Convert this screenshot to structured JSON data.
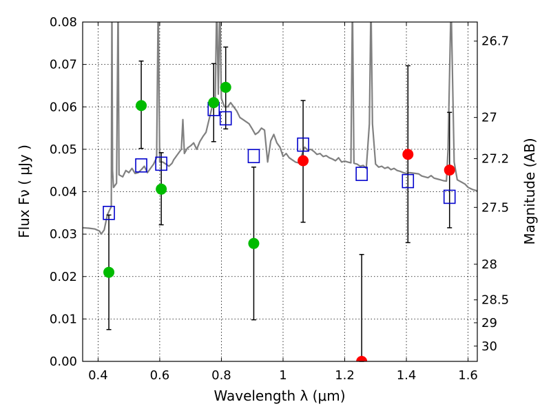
{
  "chart_data": {
    "type": "scatter",
    "xlabel": "Wavelength  λ (μm)",
    "ylabel": "Flux  Fν  ( μJy )",
    "ylabel_right": "Magnitude (AB)",
    "xlim": [
      0.35,
      1.63
    ],
    "ylim": [
      0,
      0.08
    ],
    "grid": true,
    "x_ticks": [
      0.4,
      0.6,
      0.8,
      1,
      1.2,
      1.4,
      1.6
    ],
    "x_tick_labels": [
      "0.4",
      "0.6",
      "0.8",
      "1",
      "1.2",
      "1.4",
      "1.6"
    ],
    "y_ticks": [
      0,
      0.01,
      0.02,
      0.03,
      0.04,
      0.05,
      0.06,
      0.07,
      0.08
    ],
    "y_tick_labels": [
      "0.00",
      "0.01",
      "0.02",
      "0.03",
      "0.04",
      "0.05",
      "0.06",
      "0.07",
      "0.08"
    ],
    "right_ticks": [
      {
        "label": "26.7",
        "flux": 0.0755
      },
      {
        "label": "27",
        "flux": 0.0575
      },
      {
        "label": "27.2",
        "flux": 0.0478
      },
      {
        "label": "27.5",
        "flux": 0.0363
      },
      {
        "label": "28",
        "flux": 0.0229
      },
      {
        "label": "28.5",
        "flux": 0.0145
      },
      {
        "label": "29",
        "flux": 0.0091
      },
      {
        "label": "30",
        "flux": 0.0036
      }
    ],
    "colors": {
      "detection": "#00bb00",
      "upper_limit": "#ff0000",
      "model_band": "#0000cc",
      "sed": "#808080",
      "errorbar": "#000000"
    },
    "observed_detections": [
      {
        "x": 0.435,
        "y": 0.021,
        "err_low": 0.0075,
        "err_high": 0.0345
      },
      {
        "x": 0.54,
        "y": 0.0603,
        "err_low": 0.0502,
        "err_high": 0.0708
      },
      {
        "x": 0.605,
        "y": 0.0406,
        "err_low": 0.0322,
        "err_high": 0.0492
      },
      {
        "x": 0.775,
        "y": 0.061,
        "err_low": 0.0518,
        "err_high": 0.0702
      },
      {
        "x": 0.814,
        "y": 0.0646,
        "err_low": 0.0548,
        "err_high": 0.0741
      },
      {
        "x": 0.905,
        "y": 0.0278,
        "err_low": 0.0098,
        "err_high": 0.0458
      }
    ],
    "observed_upper_limits": [
      {
        "x": 1.065,
        "y": 0.0473,
        "err_low": 0.0328,
        "err_high": 0.0615
      },
      {
        "x": 1.255,
        "y": 0.0,
        "err_low": 0.0,
        "err_high": 0.0252
      },
      {
        "x": 1.405,
        "y": 0.0488,
        "err_low": 0.028,
        "err_high": 0.0697
      },
      {
        "x": 1.54,
        "y": 0.0451,
        "err_low": 0.0315,
        "err_high": 0.0587
      }
    ],
    "model_bands": [
      {
        "x": 0.435,
        "y": 0.035
      },
      {
        "x": 0.54,
        "y": 0.0462
      },
      {
        "x": 0.605,
        "y": 0.0466
      },
      {
        "x": 0.775,
        "y": 0.0595
      },
      {
        "x": 0.814,
        "y": 0.0573
      },
      {
        "x": 0.905,
        "y": 0.0484
      },
      {
        "x": 1.065,
        "y": 0.0511
      },
      {
        "x": 1.255,
        "y": 0.0442
      },
      {
        "x": 1.405,
        "y": 0.0425
      },
      {
        "x": 1.54,
        "y": 0.0388
      }
    ],
    "sed_model": [
      [
        0.35,
        0.0315
      ],
      [
        0.37,
        0.0314
      ],
      [
        0.39,
        0.0312
      ],
      [
        0.405,
        0.0307
      ],
      [
        0.41,
        0.03
      ],
      [
        0.42,
        0.031
      ],
      [
        0.43,
        0.0345
      ],
      [
        0.437,
        0.0356
      ],
      [
        0.443,
        0.0365
      ],
      [
        0.445,
        0.085
      ],
      [
        0.447,
        0.045
      ],
      [
        0.45,
        0.041
      ],
      [
        0.46,
        0.042
      ],
      [
        0.465,
        0.085
      ],
      [
        0.468,
        0.044
      ],
      [
        0.48,
        0.0435
      ],
      [
        0.49,
        0.045
      ],
      [
        0.5,
        0.0445
      ],
      [
        0.51,
        0.0455
      ],
      [
        0.52,
        0.0443
      ],
      [
        0.53,
        0.0445
      ],
      [
        0.54,
        0.0452
      ],
      [
        0.55,
        0.046
      ],
      [
        0.56,
        0.0445
      ],
      [
        0.57,
        0.0455
      ],
      [
        0.58,
        0.0465
      ],
      [
        0.59,
        0.048
      ],
      [
        0.595,
        0.085
      ],
      [
        0.6,
        0.047
      ],
      [
        0.61,
        0.047
      ],
      [
        0.62,
        0.0465
      ],
      [
        0.63,
        0.046
      ],
      [
        0.64,
        0.0467
      ],
      [
        0.645,
        0.0475
      ],
      [
        0.65,
        0.048
      ],
      [
        0.66,
        0.049
      ],
      [
        0.665,
        0.0495
      ],
      [
        0.67,
        0.05
      ],
      [
        0.675,
        0.057
      ],
      [
        0.68,
        0.049
      ],
      [
        0.69,
        0.0503
      ],
      [
        0.7,
        0.0508
      ],
      [
        0.71,
        0.0515
      ],
      [
        0.72,
        0.05
      ],
      [
        0.73,
        0.0518
      ],
      [
        0.74,
        0.053
      ],
      [
        0.75,
        0.054
      ],
      [
        0.76,
        0.057
      ],
      [
        0.77,
        0.06
      ],
      [
        0.78,
        0.062
      ],
      [
        0.785,
        0.085
      ],
      [
        0.79,
        0.063
      ],
      [
        0.795,
        0.085
      ],
      [
        0.8,
        0.062
      ],
      [
        0.81,
        0.06
      ],
      [
        0.82,
        0.06
      ],
      [
        0.83,
        0.061
      ],
      [
        0.84,
        0.06
      ],
      [
        0.85,
        0.059
      ],
      [
        0.86,
        0.0575
      ],
      [
        0.87,
        0.057
      ],
      [
        0.88,
        0.0565
      ],
      [
        0.89,
        0.056
      ],
      [
        0.9,
        0.0548
      ],
      [
        0.91,
        0.0535
      ],
      [
        0.92,
        0.054
      ],
      [
        0.93,
        0.055
      ],
      [
        0.94,
        0.0545
      ],
      [
        0.95,
        0.047
      ],
      [
        0.96,
        0.052
      ],
      [
        0.97,
        0.0535
      ],
      [
        0.98,
        0.0515
      ],
      [
        0.99,
        0.0505
      ],
      [
        1.0,
        0.0483
      ],
      [
        1.01,
        0.049
      ],
      [
        1.02,
        0.048
      ],
      [
        1.03,
        0.0475
      ],
      [
        1.04,
        0.047
      ],
      [
        1.05,
        0.0468
      ],
      [
        1.06,
        0.0485
      ],
      [
        1.07,
        0.0505
      ],
      [
        1.08,
        0.0498
      ],
      [
        1.09,
        0.05
      ],
      [
        1.1,
        0.0495
      ],
      [
        1.11,
        0.0488
      ],
      [
        1.12,
        0.049
      ],
      [
        1.13,
        0.0483
      ],
      [
        1.14,
        0.0485
      ],
      [
        1.15,
        0.048
      ],
      [
        1.16,
        0.0477
      ],
      [
        1.17,
        0.0473
      ],
      [
        1.18,
        0.048
      ],
      [
        1.19,
        0.047
      ],
      [
        1.2,
        0.0472
      ],
      [
        1.21,
        0.047
      ],
      [
        1.22,
        0.0468
      ],
      [
        1.225,
        0.085
      ],
      [
        1.23,
        0.0467
      ],
      [
        1.24,
        0.0465
      ],
      [
        1.25,
        0.046
      ],
      [
        1.26,
        0.0462
      ],
      [
        1.27,
        0.0455
      ],
      [
        1.28,
        0.056
      ],
      [
        1.285,
        0.085
      ],
      [
        1.29,
        0.056
      ],
      [
        1.3,
        0.0465
      ],
      [
        1.31,
        0.0458
      ],
      [
        1.32,
        0.046
      ],
      [
        1.33,
        0.0455
      ],
      [
        1.34,
        0.0458
      ],
      [
        1.35,
        0.0452
      ],
      [
        1.36,
        0.0455
      ],
      [
        1.37,
        0.045
      ],
      [
        1.38,
        0.0448
      ],
      [
        1.39,
        0.0445
      ],
      [
        1.4,
        0.0443
      ],
      [
        1.41,
        0.0445
      ],
      [
        1.42,
        0.0444
      ],
      [
        1.43,
        0.0443
      ],
      [
        1.44,
        0.0442
      ],
      [
        1.45,
        0.0437
      ],
      [
        1.46,
        0.0435
      ],
      [
        1.47,
        0.0433
      ],
      [
        1.48,
        0.0438
      ],
      [
        1.49,
        0.0432
      ],
      [
        1.5,
        0.043
      ],
      [
        1.51,
        0.0428
      ],
      [
        1.52,
        0.0426
      ],
      [
        1.53,
        0.0425
      ],
      [
        1.535,
        0.05
      ],
      [
        1.545,
        0.085
      ],
      [
        1.555,
        0.047
      ],
      [
        1.565,
        0.0428
      ],
      [
        1.58,
        0.0422
      ],
      [
        1.59,
        0.0418
      ],
      [
        1.6,
        0.041
      ],
      [
        1.615,
        0.0405
      ],
      [
        1.63,
        0.0402
      ]
    ]
  }
}
